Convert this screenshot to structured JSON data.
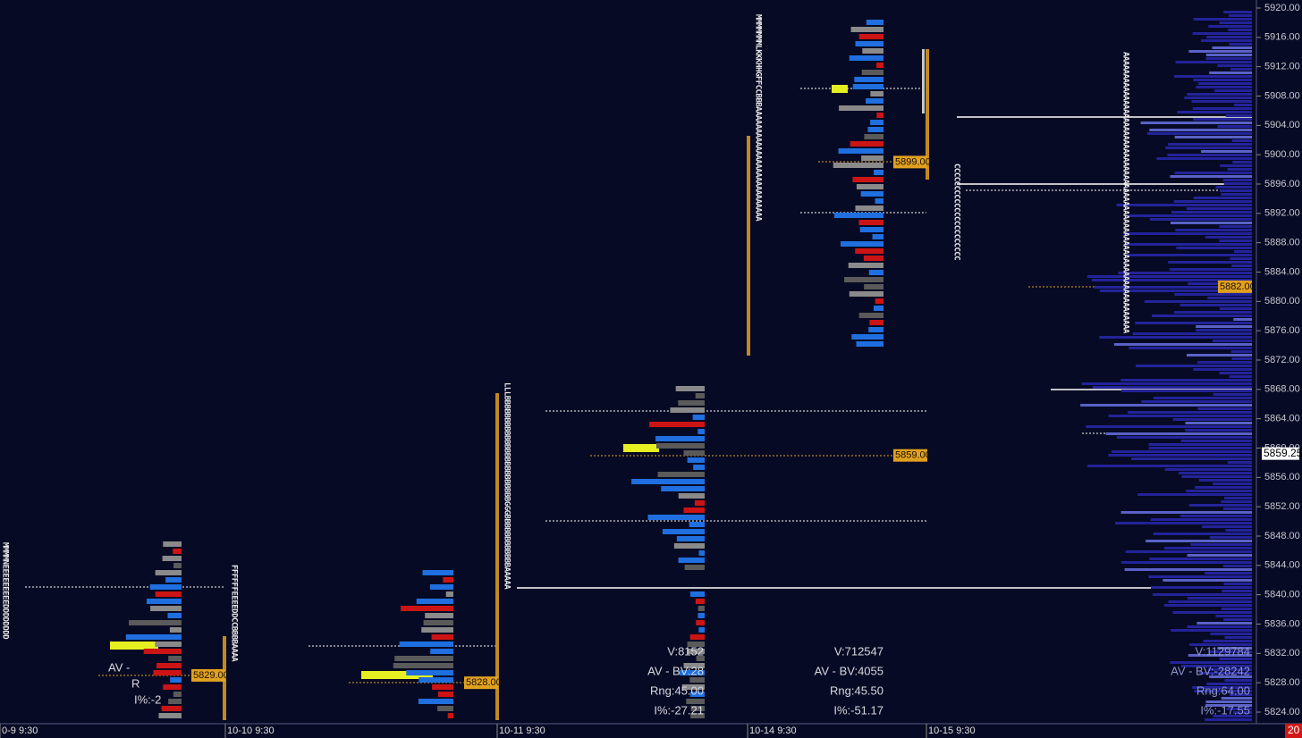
{
  "price_axis": {
    "ylim": [
      5824,
      5920
    ],
    "ticks": [
      {
        "value": 5920,
        "label": "5920.00"
      },
      {
        "value": 5916,
        "label": "5916.00"
      },
      {
        "value": 5912,
        "label": "5912.00"
      },
      {
        "value": 5908,
        "label": "5908.00"
      },
      {
        "value": 5904,
        "label": "5904.00"
      },
      {
        "value": 5900,
        "label": "5900.00"
      },
      {
        "value": 5896,
        "label": "5896.00"
      },
      {
        "value": 5892,
        "label": "5892.00"
      },
      {
        "value": 5888,
        "label": "5888.00"
      },
      {
        "value": 5884,
        "label": "5884.00"
      },
      {
        "value": 5880,
        "label": "5880.00"
      },
      {
        "value": 5876,
        "label": "5876.00"
      },
      {
        "value": 5872,
        "label": "5872.00"
      },
      {
        "value": 5868,
        "label": "5868.00"
      },
      {
        "value": 5864,
        "label": "5864.00"
      },
      {
        "value": 5860,
        "label": "5860.00"
      },
      {
        "value": 5856,
        "label": "5856.00"
      },
      {
        "value": 5852,
        "label": "5852.00"
      },
      {
        "value": 5848,
        "label": "5848.00"
      },
      {
        "value": 5844,
        "label": "5844.00"
      },
      {
        "value": 5840,
        "label": "5840.00"
      },
      {
        "value": 5836,
        "label": "5836.00"
      },
      {
        "value": 5832,
        "label": "5832.00"
      },
      {
        "value": 5828,
        "label": "5828.00"
      },
      {
        "value": 5824,
        "label": "5824.00"
      }
    ],
    "current_price": {
      "value": 5859.25,
      "label": "5859.25"
    }
  },
  "time_axis": [
    "0-9 9:30",
    "10-10 9:30",
    "10-11 9:30",
    "10-14 9:30",
    "10-15 9:30"
  ],
  "price_tags": [
    {
      "value": 5829,
      "label": "5829.00"
    },
    {
      "value": 5828,
      "label": "5828.00"
    },
    {
      "value": 5859,
      "label": "5859.00"
    },
    {
      "value": 5899,
      "label": "5899.00"
    },
    {
      "value": 5882,
      "label": "5882.00"
    }
  ],
  "sessions": [
    {
      "lines": [
        "AV -",
        "R",
        "I%:-2"
      ]
    },
    {
      "lines": [
        "V:8152",
        "AV - BV:28",
        "Rng:45.00",
        "I%:-27.21"
      ]
    },
    {
      "lines": [
        "V:712547",
        "AV - BV:4055",
        "Rng:45.50",
        "I%:-51.17"
      ]
    },
    {
      "lines": [
        "V:1129784",
        "AV - BV:-28242",
        "Rng:64.00",
        "I%:-17.55"
      ]
    }
  ],
  "tpo_columns": [
    "MMMMNEEEEEEEEEDDDDDDDD",
    "FFFFFFEEEEDDCCBBBBAAAA",
    "LLLBBBBBBBBBBBBBBBBBBBBBBBBGGGBBBBBBBBBBBBAAAAA",
    "MMMMMMMLKKKHHGFFCCBBBAAAAAAAAAAAAAAAAAAAAAAAAAA",
    "CCCCCCCCCCCCCCCCCCCCCC",
    "AAAAAAAAAAAAAAAAAAAAAAAAAAAAAAAAAAAAAAAAAAAAAAAAAAAAAAAAAAAAAAAA"
  ],
  "corner_label": "20"
}
